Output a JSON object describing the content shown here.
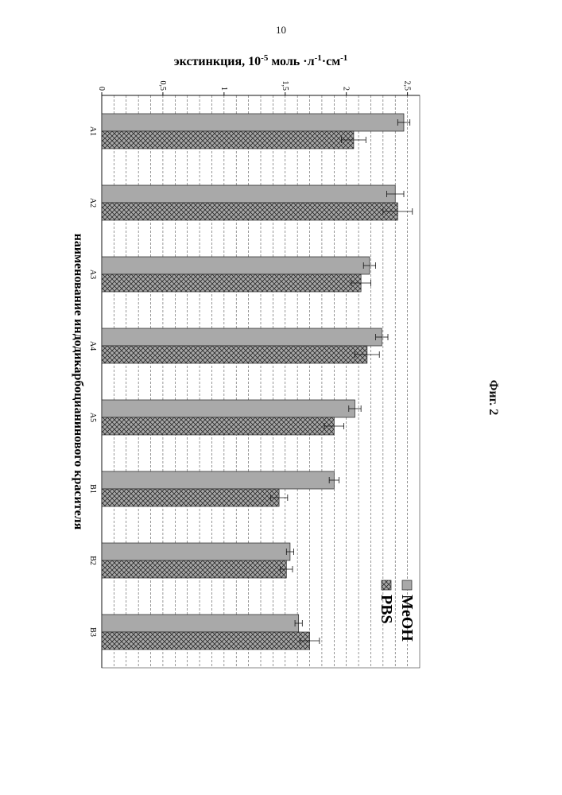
{
  "page": {
    "number": "10",
    "caption": "Фиг. 2"
  },
  "chart_data": {
    "type": "bar",
    "orientation": "rotated-90",
    "xlabel": "наименование индодикарбоцианинового красителя",
    "ylabel_parts": {
      "main": "экстинкция, 10",
      "exp1": "-5",
      "mid1": " моль ·л",
      "exp2": "-1",
      "mid2": "·см",
      "exp3": "-1"
    },
    "categories": [
      "A1",
      "A2",
      "A3",
      "A4",
      "A5",
      "B1",
      "B2",
      "B3"
    ],
    "ylim": [
      0,
      2.6
    ],
    "yticks": [
      0,
      0.5,
      1,
      1.5,
      2,
      2.5
    ],
    "ytick_labels": [
      "0",
      "0,5",
      "1",
      "1,5",
      "2",
      "2,5"
    ],
    "grid": true,
    "legend_position": "top-right",
    "series": [
      {
        "name": "MeOH",
        "values": [
          2.47,
          2.4,
          2.19,
          2.29,
          2.07,
          1.9,
          1.54,
          1.61
        ],
        "errors": [
          0.05,
          0.07,
          0.05,
          0.05,
          0.05,
          0.04,
          0.03,
          0.03
        ],
        "color": "#a9a9a9",
        "pattern": "solid"
      },
      {
        "name": "PBS",
        "values": [
          2.06,
          2.42,
          2.12,
          2.17,
          1.9,
          1.45,
          1.51,
          1.7
        ],
        "errors": [
          0.1,
          0.12,
          0.08,
          0.1,
          0.08,
          0.07,
          0.05,
          0.08
        ],
        "color": "#9a9a9a",
        "pattern": "crosshatch"
      }
    ]
  }
}
